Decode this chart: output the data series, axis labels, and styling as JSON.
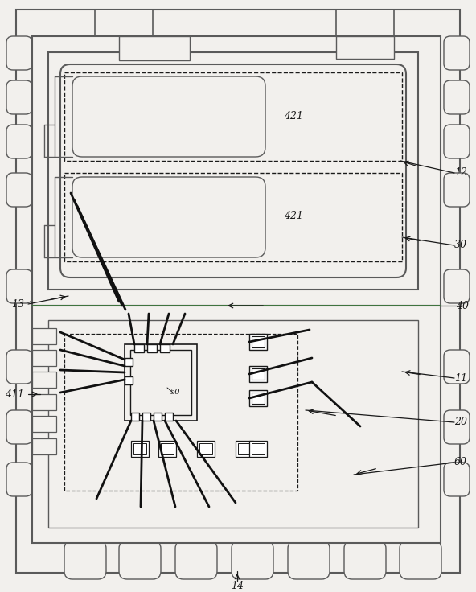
{
  "bg_color": "#f2f0ed",
  "lc": "#5a5a5a",
  "dc": "#1a1a1a",
  "green_line": "#3a7a3a",
  "wire_color": "#111111",
  "figsize": [
    5.92,
    7.36
  ],
  "dpi": 100
}
